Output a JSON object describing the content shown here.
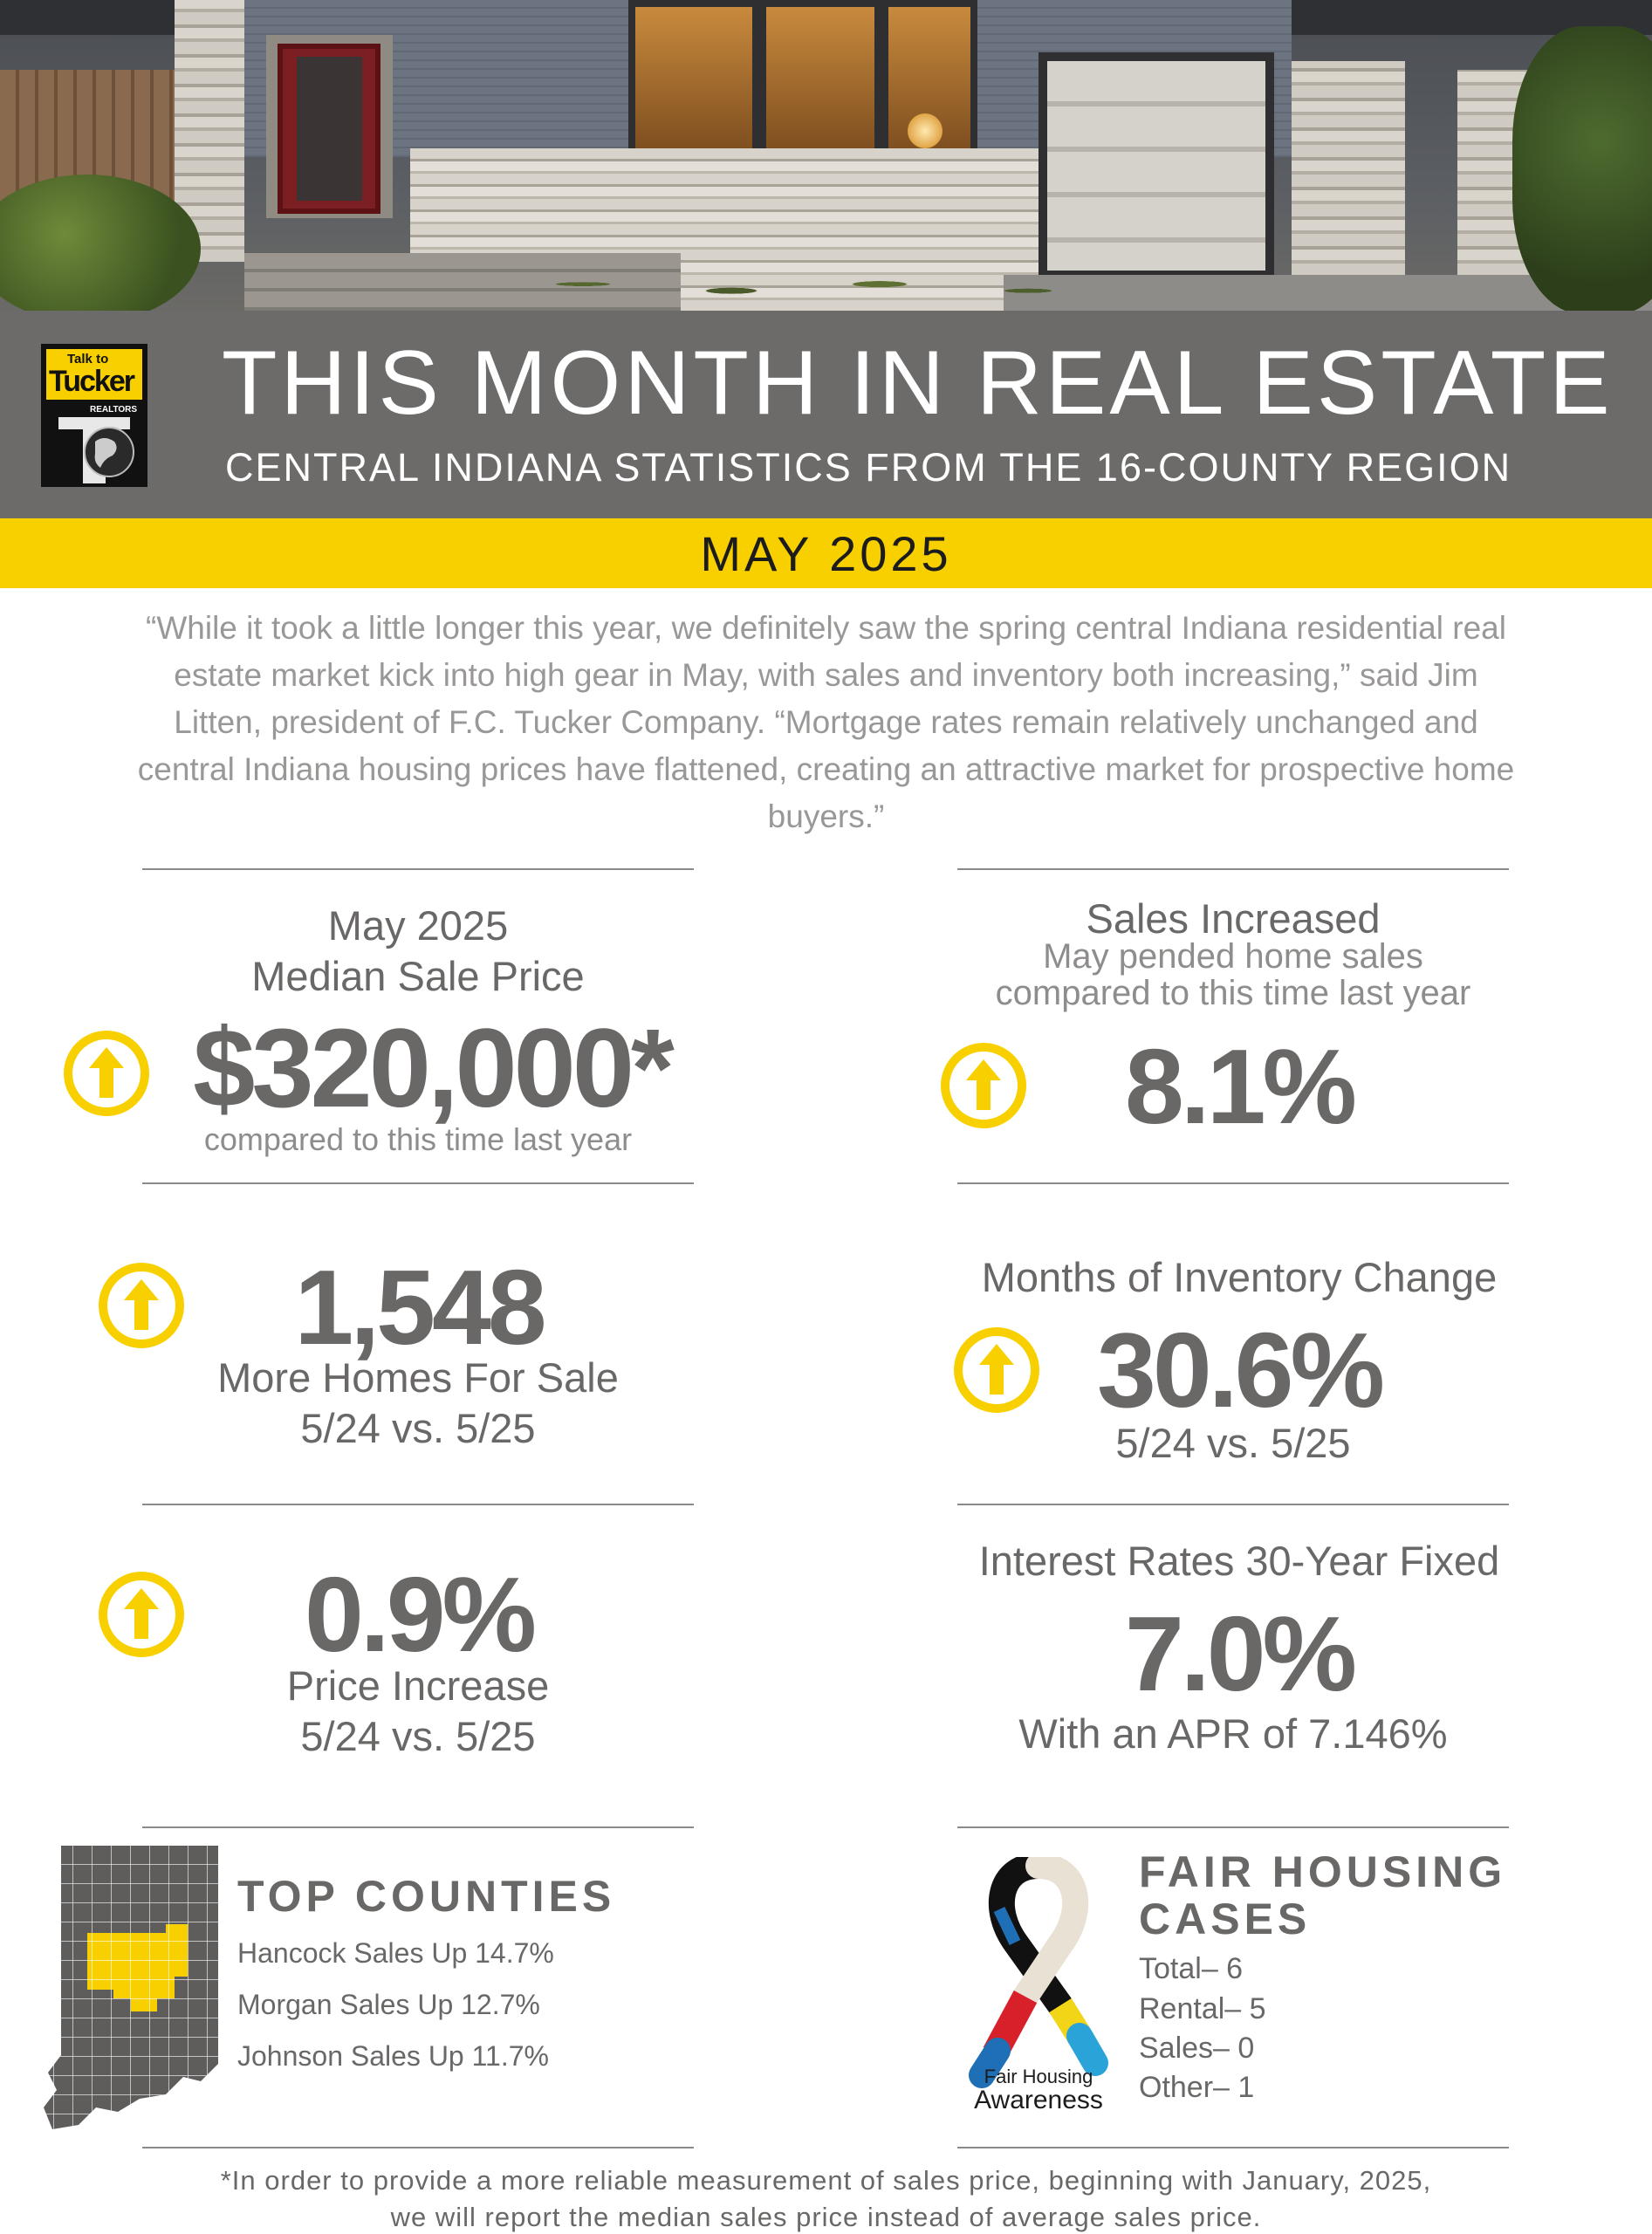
{
  "header": {
    "logo_text": {
      "line1": "Talk to",
      "line2": "Tucker",
      "line3": "REALTORS"
    },
    "title": "THIS MONTH IN REAL ESTATE",
    "subtitle": "CENTRAL INDIANA STATISTICS FROM THE 16-COUNTY REGION",
    "month": "MAY 2025"
  },
  "quote": "“While it took a little longer this year, we definitely saw the spring central Indiana residential real estate market kick into high gear in May, with sales and inventory both increasing,” said Jim Litten, president of F.C. Tucker Company. “Mortgage rates remain relatively unchanged and central Indiana housing prices have flattened, creating an attractive market for prospective home buyers.”",
  "stats": {
    "median_price": {
      "label_line1": "May 2025",
      "label_line2": "Median Sale Price",
      "value": "$320,000*",
      "note": "compared to this time last year",
      "direction": "up"
    },
    "sales": {
      "head": "Sales Increased",
      "desc_line1": "May pended home sales",
      "desc_line2": "compared to this time last year",
      "value": "8.1%",
      "direction": "up"
    },
    "homes_for_sale": {
      "value": "1,548",
      "label_line1": "More Homes For Sale",
      "label_line2": "5/24 vs. 5/25",
      "direction": "up"
    },
    "inventory": {
      "head": "Months of Inventory Change",
      "value": "30.6%",
      "note": "5/24 vs. 5/25",
      "direction": "up"
    },
    "price_increase": {
      "value": "0.9%",
      "label_line1": "Price Increase",
      "label_line2": "5/24 vs. 5/25",
      "direction": "up"
    },
    "interest": {
      "head": "Interest Rates 30-Year Fixed",
      "value": "7.0%",
      "note": "With an APR of 7.146%"
    }
  },
  "top_counties": {
    "title": "TOP COUNTIES",
    "items": [
      "Hancock Sales Up 14.7%",
      "Morgan Sales Up 12.7%",
      "Johnson Sales Up 11.7%"
    ]
  },
  "fair_housing": {
    "title_line1": "FAIR HOUSING",
    "title_line2": "CASES",
    "ribbon_line1": "Fair Housing",
    "ribbon_line2": "Awareness",
    "items": [
      "Total– 6",
      "Rental– 5",
      "Sales– 0",
      "Other– 1"
    ]
  },
  "footnote_line1": "*In order to provide a more reliable measurement of sales price, beginning with January, 2025,",
  "footnote_line2": "we will report the median sales price instead of average sales price.",
  "colors": {
    "banner": "#6d6b6a",
    "accent_yellow": "#f8d000",
    "text_grey": "#6a6867",
    "quote_grey": "#9a9897"
  },
  "icons": [
    "up-arrow-circle-icon",
    "indiana-map-icon",
    "awareness-ribbon-icon",
    "tucker-logo"
  ]
}
